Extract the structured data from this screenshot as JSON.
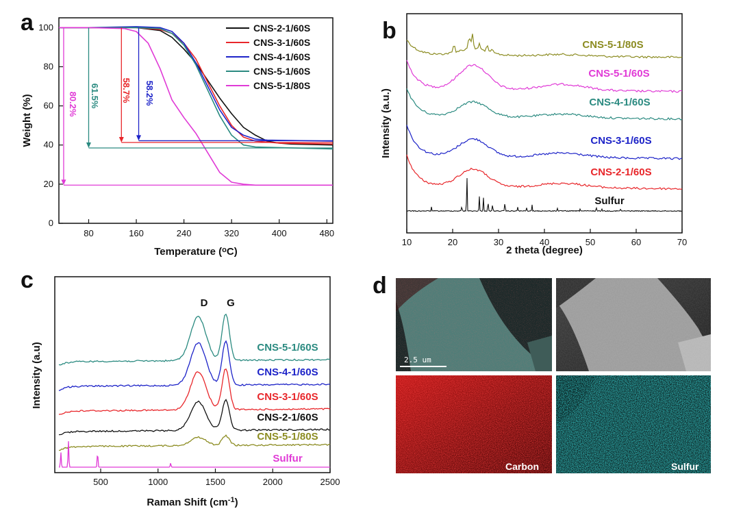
{
  "colors": {
    "black": "#111111",
    "red": "#e8262a",
    "blue": "#1d23c8",
    "teal": "#2a8a80",
    "magenta": "#e03ad6",
    "olive": "#8c8c22"
  },
  "chart_data": [
    {
      "panel": "a",
      "type": "line",
      "xlabel": "Temperature (°C)",
      "ylabel": "Weight (%)",
      "xlim": [
        30,
        490
      ],
      "ylim": [
        0,
        105
      ],
      "xticks": [
        "80",
        "160",
        "240",
        "320",
        "400",
        "480"
      ],
      "yticks": [
        "0",
        "20",
        "40",
        "60",
        "80",
        "100"
      ],
      "legend_position": "top-right",
      "series": [
        {
          "name": "CNS-2-1/60S",
          "color": "black",
          "x": [
            30,
            80,
            160,
            200,
            220,
            240,
            260,
            280,
            300,
            320,
            340,
            360,
            380,
            400,
            420,
            490
          ],
          "y": [
            100,
            100,
            100,
            98.5,
            95,
            89,
            82,
            73,
            64,
            56,
            49,
            45,
            42,
            41,
            40.5,
            40
          ]
        },
        {
          "name": "CNS-3-1/60S",
          "color": "red",
          "x": [
            30,
            80,
            160,
            200,
            220,
            240,
            260,
            280,
            300,
            320,
            340,
            360,
            380,
            400,
            490
          ],
          "y": [
            100,
            100,
            100,
            99,
            97,
            92,
            84,
            72,
            60,
            50,
            44,
            42,
            41.5,
            41,
            40.5
          ]
        },
        {
          "name": "CNS-4-1/60S",
          "color": "blue",
          "x": [
            30,
            80,
            160,
            200,
            220,
            240,
            260,
            280,
            300,
            320,
            340,
            360,
            380,
            490
          ],
          "y": [
            100,
            100,
            100.5,
            100,
            98,
            92,
            82,
            70,
            58,
            49,
            45,
            43,
            42.5,
            42
          ]
        },
        {
          "name": "CNS-5-1/60S",
          "color": "teal",
          "x": [
            30,
            80,
            160,
            200,
            220,
            240,
            260,
            280,
            300,
            320,
            340,
            360,
            490
          ],
          "y": [
            100,
            100,
            100,
            99.5,
            97,
            91,
            81,
            68,
            55,
            45,
            40,
            39,
            38
          ]
        },
        {
          "name": "CNS-5-1/80S",
          "color": "magenta",
          "x": [
            30,
            80,
            140,
            160,
            180,
            200,
            220,
            240,
            260,
            280,
            300,
            320,
            340,
            360,
            370,
            490
          ],
          "y": [
            100,
            100,
            99.5,
            98,
            92,
            79,
            63,
            54,
            46,
            36,
            26,
            21,
            20,
            19.5,
            19.5,
            19.5
          ]
        }
      ],
      "annotations": [
        {
          "text": "80.2%",
          "color": "magenta"
        },
        {
          "text": "61.5%",
          "color": "teal"
        },
        {
          "text": "58.7%",
          "color": "red"
        },
        {
          "text": "58.2%",
          "color": "blue"
        }
      ]
    },
    {
      "panel": "b",
      "type": "line",
      "xlabel": "2 theta (degree)",
      "ylabel": "Intensity (a.u.)",
      "xlim": [
        10,
        70
      ],
      "xticks": [
        "10",
        "20",
        "30",
        "40",
        "50",
        "60",
        "70"
      ],
      "series": [
        {
          "name": "CNS-5-1/80S",
          "color": "olive"
        },
        {
          "name": "CNS-5-1/60S",
          "color": "magenta"
        },
        {
          "name": "CNS-4-1/60S",
          "color": "teal"
        },
        {
          "name": "CNS-3-1/60S",
          "color": "blue"
        },
        {
          "name": "CNS-2-1/60S",
          "color": "red"
        },
        {
          "name": "Sulfur",
          "color": "black",
          "peaks_x": [
            15.4,
            22.0,
            23.1,
            25.8,
            26.7,
            27.7,
            28.7,
            31.4,
            34.2,
            36.1,
            37.3,
            42.8,
            47.8,
            51.3,
            52.5,
            56.6
          ]
        }
      ]
    },
    {
      "panel": "c",
      "type": "line",
      "xlabel": "Raman Shift (cm-1)",
      "ylabel": "Intensity (a.u)",
      "xlim": [
        100,
        2500
      ],
      "xticks": [
        "500",
        "1000",
        "1500",
        "2000",
        "2500"
      ],
      "peak_labels": [
        "D",
        "G"
      ],
      "peaks_x": [
        1350,
        1590
      ],
      "series": [
        {
          "name": "CNS-5-1/60S",
          "color": "teal"
        },
        {
          "name": "CNS-4-1/60S",
          "color": "blue"
        },
        {
          "name": "CNS-3-1/60S",
          "color": "red"
        },
        {
          "name": "CNS-2-1/60S",
          "color": "black"
        },
        {
          "name": "CNS-5-1/80S",
          "color": "olive"
        },
        {
          "name": "Sulfur",
          "color": "magenta",
          "peaks_x": [
            153,
            219,
            473,
            1110
          ]
        }
      ]
    }
  ],
  "figure": {
    "panel_letters": [
      "a",
      "b",
      "c",
      "d"
    ],
    "b_sulfur_label": "Sulfur",
    "d_scale_bar": "2.5 um",
    "d_tiles": {
      "carbon_label": "Carbon",
      "sulfur_label": "Sulfur"
    }
  }
}
